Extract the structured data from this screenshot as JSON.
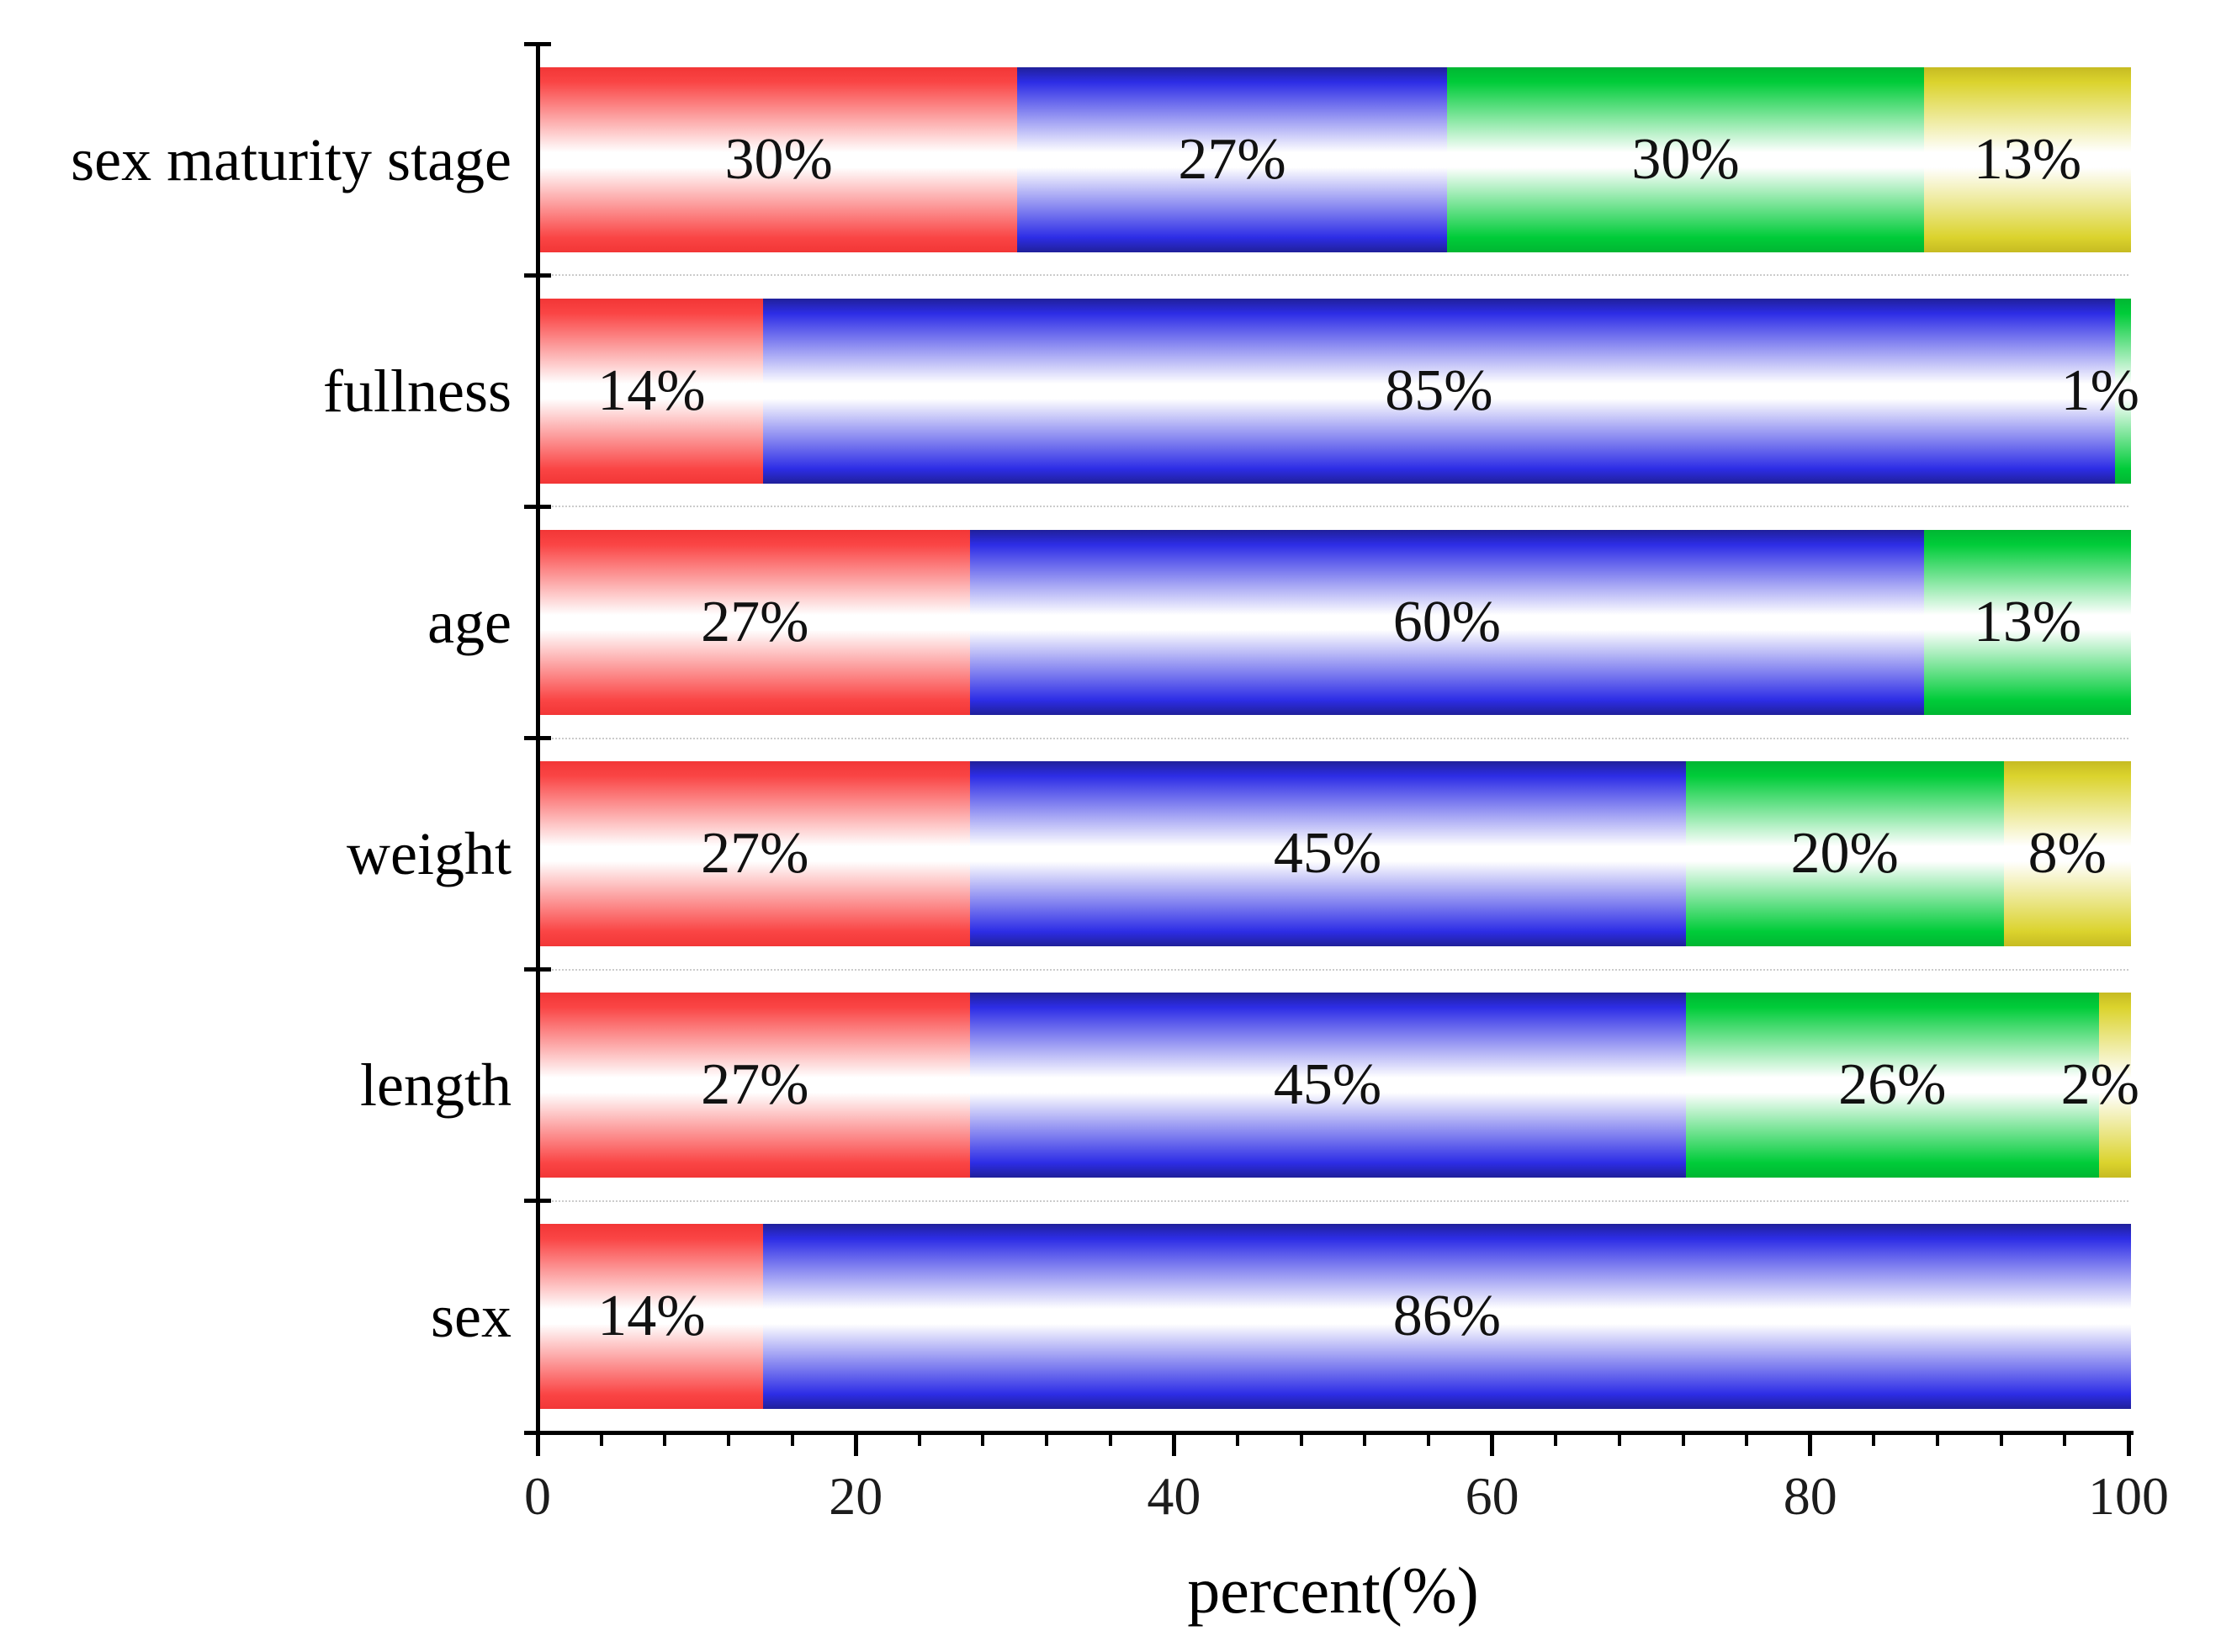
{
  "chart_data": {
    "type": "bar",
    "orientation": "horizontal",
    "stacked": true,
    "title": "",
    "xlabel": "percent(%)",
    "ylabel": "",
    "xlim": [
      0,
      100
    ],
    "x_major_ticks": [
      0,
      20,
      40,
      60,
      80,
      100
    ],
    "x_major_tick_labels": [
      "0",
      "20",
      "40",
      "60",
      "80",
      "100"
    ],
    "x_minor_tick_step": 4,
    "grid": "dotted horizontal lines between category bands",
    "legend": "none",
    "palette": {
      "red": {
        "base": "#fa4545",
        "edge": "#f23636"
      },
      "blue": {
        "base": "#2d2de6",
        "edge": "#20209a"
      },
      "green": {
        "base": "#00cc39",
        "edge": "#00b632"
      },
      "yellow": {
        "base": "#dbd32d",
        "edge": "#c6bb22"
      }
    },
    "categories": [
      "sex maturity stage",
      "fullness",
      "age",
      "weight",
      "length",
      "sex"
    ],
    "rows": [
      {
        "label": "sex maturity stage",
        "segments": [
          {
            "value": 30,
            "label": "30%",
            "color": "red"
          },
          {
            "value": 27,
            "label": "27%",
            "color": "blue"
          },
          {
            "value": 30,
            "label": "30%",
            "color": "green"
          },
          {
            "value": 13,
            "label": "13%",
            "color": "yellow"
          }
        ]
      },
      {
        "label": "fullness",
        "segments": [
          {
            "value": 14,
            "label": "14%",
            "color": "red"
          },
          {
            "value": 85,
            "label": "85%",
            "color": "blue"
          },
          {
            "value": 1,
            "label": "1%",
            "color": "green"
          }
        ]
      },
      {
        "label": "age",
        "segments": [
          {
            "value": 27,
            "label": "27%",
            "color": "red"
          },
          {
            "value": 60,
            "label": "60%",
            "color": "blue"
          },
          {
            "value": 13,
            "label": "13%",
            "color": "green"
          }
        ]
      },
      {
        "label": "weight",
        "segments": [
          {
            "value": 27,
            "label": "27%",
            "color": "red"
          },
          {
            "value": 45,
            "label": "45%",
            "color": "blue"
          },
          {
            "value": 20,
            "label": "20%",
            "color": "green"
          },
          {
            "value": 8,
            "label": "8%",
            "color": "yellow"
          }
        ]
      },
      {
        "label": "length",
        "segments": [
          {
            "value": 27,
            "label": "27%",
            "color": "red"
          },
          {
            "value": 45,
            "label": "45%",
            "color": "blue"
          },
          {
            "value": 26,
            "label": "26%",
            "color": "green"
          },
          {
            "value": 2,
            "label": "2%",
            "color": "yellow"
          }
        ]
      },
      {
        "label": "sex",
        "segments": [
          {
            "value": 14,
            "label": "14%",
            "color": "red"
          },
          {
            "value": 86,
            "label": "86%",
            "color": "blue"
          }
        ]
      }
    ]
  }
}
